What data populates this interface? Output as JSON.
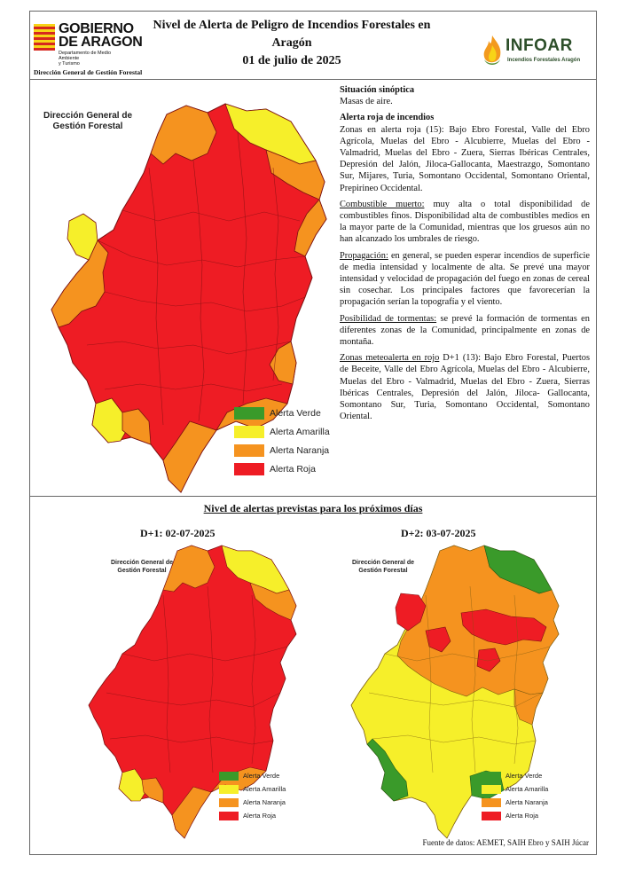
{
  "header": {
    "gov_name_line1": "GOBIERNO",
    "gov_name_line2": "DE ARAGON",
    "gov_dept_line1": "Departamento de Medio Ambiente",
    "gov_dept_line2": "y Turismo",
    "directorate": "Dirección General de Gestión Forestal",
    "title_line1": "Nivel de Alerta de Peligro de Incendios Forestales en Aragón",
    "title_line2": "01 de julio de 2025",
    "infoar_name": "INFOAR",
    "infoar_sub": "Incendios Forestales Aragón"
  },
  "map_label": {
    "line1": "Dirección General de",
    "line2": "Gestión Forestal"
  },
  "legend": [
    "Alerta Verde",
    "Alerta Amarilla",
    "Alerta Naranja",
    "Alerta Roja"
  ],
  "colors": {
    "verde": "#3a9a2a",
    "amarilla": "#f6ef2a",
    "naranja": "#f5931f",
    "roja": "#ee1c24",
    "infoar_green": "#2d4f2a"
  },
  "text": {
    "sinoptica_heading": "Situación sinóptica",
    "sinoptica_body": "Masas de aire.",
    "roja_heading": "Alerta roja de incendios",
    "roja_body": "Zonas en alerta roja (15): Bajo Ebro Forestal, Valle del Ebro Agrícola, Muelas del Ebro - Alcubierre, Muelas del Ebro - Valmadrid, Muelas del Ebro - Zuera, Sierras Ibéricas Centrales, Depresión del Jalón, Jiloca-Gallocanta, Maestrazgo, Somontano Sur, Mijares, Turia, Somontano Occidental, Somontano Oriental, Prepirineo Occidental.",
    "combustible_label": "Combustible muerto:",
    "combustible_body": " muy alta o total disponibilidad de combustibles finos. Disponibilidad alta de combustibles medios en la mayor parte de la Comunidad, mientras que los gruesos aún no han alcanzado los umbrales de riesgo.",
    "propagacion_label": "Propagación:",
    "propagacion_body": " en general, se pueden esperar incendios de superficie de media intensidad y localmente de alta. Se prevé una mayor intensidad y velocidad de propagación del fuego en zonas de cereal sin cosechar. Los principales factores que favorecerían la propagación serían la topografía y el viento.",
    "tormentas_label": "Posibilidad de tormentas:",
    "tormentas_body": " se prevé la formación de tormentas en diferentes zonas de la Comunidad, principalmente en zonas de montaña.",
    "meteo_label": "Zonas meteoalerta en rojo",
    "meteo_body": " D+1 (13): Bajo Ebro Forestal, Puertos de Beceite, Valle del Ebro Agrícola, Muelas del Ebro - Alcubierre, Muelas del Ebro - Valmadrid, Muelas del Ebro - Zuera, Sierras Ibéricas Centrales, Depresión del Jalón, Jiloca- Gallocanta, Somontano Sur, Turia, Somontano Occidental, Somontano Oriental."
  },
  "forecast": {
    "heading": "Nivel de alertas previstas para los próximos días",
    "d1_title": "D+1: 02-07-2025",
    "d2_title": "D+2: 03-07-2025"
  },
  "source": "Fuente de datos: AEMET, SAIH Ebro y SAIH Júcar"
}
